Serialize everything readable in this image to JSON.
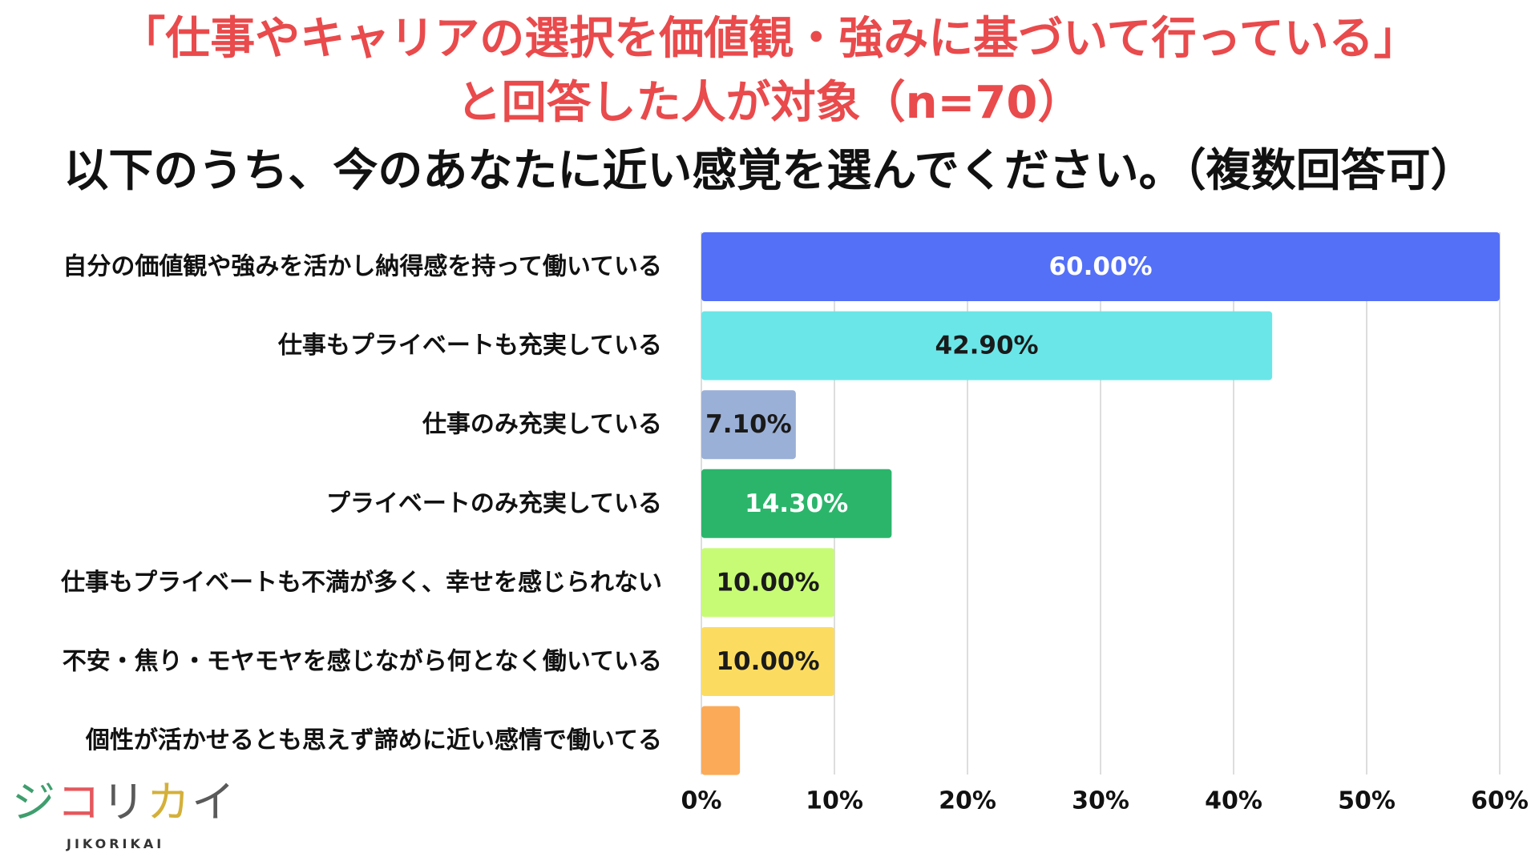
{
  "title": {
    "line1": "「仕事やキャリアの選択を価値観・強みに基づいて行っている」",
    "line2": "と回答した人が対象（n=70）",
    "question": "以下のうち、今のあなたに近い感覚を選んでください。（複数回答可）"
  },
  "colors": {
    "title_red": "#E94A4C",
    "question": "#111111",
    "grid": "#D2D2D2",
    "tick_label": "#111111",
    "category_label": "#111111"
  },
  "chart_data": {
    "type": "bar",
    "orientation": "horizontal",
    "categories": [
      "自分の価値観や強みを活かし納得感を持って働いている",
      "仕事もプライベートも充実している",
      "仕事のみ充実している",
      "プライベートのみ充実している",
      "仕事もプライベートも不満が多く、幸せを感じられない",
      "不安・焦り・モヤモヤを感じながら何となく働いている",
      "個性が活かせるとも思えず諦めに近い感情で働いてる"
    ],
    "values": [
      60.0,
      42.9,
      7.1,
      14.3,
      10.0,
      10.0,
      2.9
    ],
    "data_labels": [
      "60.00%",
      "42.90%",
      "7.10%",
      "14.30%",
      "10.00%",
      "10.00%",
      ""
    ],
    "bar_colors": [
      "#5470F7",
      "#6BE6E8",
      "#9BB0D6",
      "#2BB56B",
      "#C8FB75",
      "#FCDC60",
      "#FBAA58"
    ],
    "label_colors": [
      "#FFFFFF",
      "#1A1A1A",
      "#1A1A1A",
      "#FFFFFF",
      "#1A1A1A",
      "#1A1A1A",
      "#1A1A1A"
    ],
    "x_ticks": [
      "0%",
      "10%",
      "20%",
      "30%",
      "40%",
      "50%",
      "60%"
    ],
    "xlim": [
      0,
      60
    ],
    "grid": true,
    "legend": "none"
  },
  "logo": {
    "mark": "ジコリカイ",
    "wordmark": "JIKORIKAI",
    "char_colors": [
      "#3F9E6E",
      "#E4575C",
      "#5A5A5A",
      "#D4B03A",
      "#5A5A5A"
    ]
  }
}
